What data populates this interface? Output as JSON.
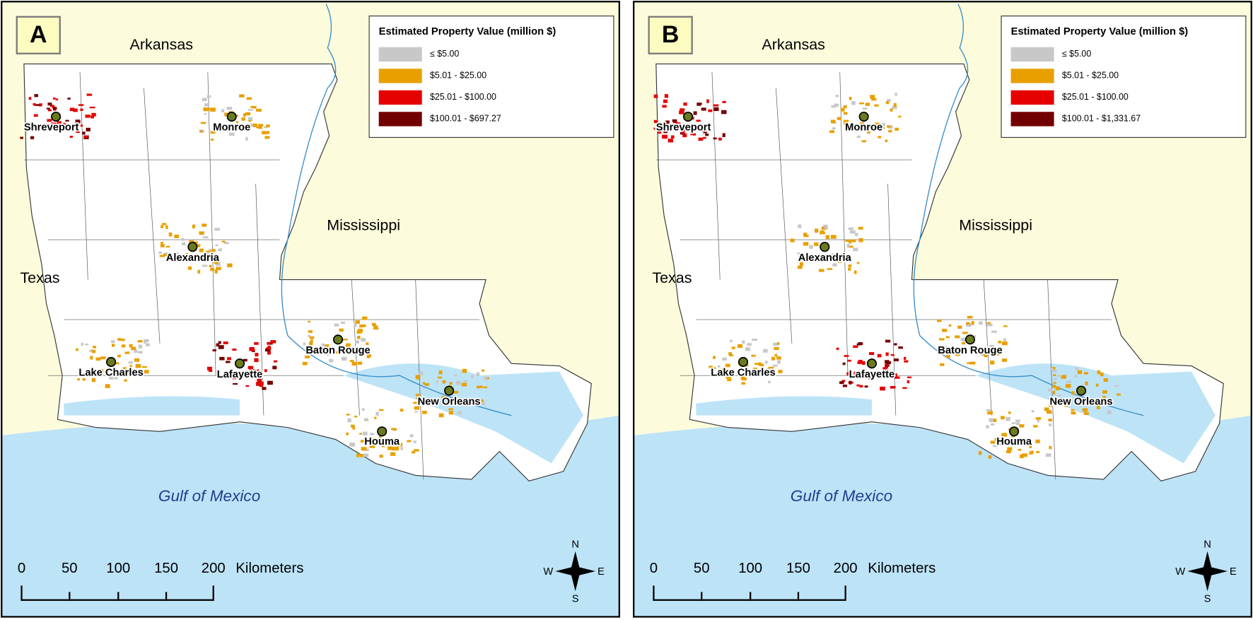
{
  "panels": [
    {
      "label": "A",
      "legend": {
        "title": "Estimated Property Value (million $)",
        "items": [
          {
            "label": "≤ $5.00",
            "color": "#c8c8c8"
          },
          {
            "label": "$5.01 - $25.00",
            "color": "#e8a000"
          },
          {
            "label": "$25.01 - $100.00",
            "color": "#e60000"
          },
          {
            "label": "$100.01 - $697.27",
            "color": "#730000"
          }
        ]
      },
      "states": [
        "Arkansas",
        "Mississippi",
        "Texas"
      ],
      "gulf": "Gulf of Mexico",
      "cities": [
        "Shreveport",
        "Monroe",
        "Alexandria",
        "Lake Charles",
        "Lafayette",
        "Baton Rouge",
        "New Orleans",
        "Houma"
      ],
      "scale": {
        "ticks": [
          0,
          50,
          100,
          150,
          200
        ],
        "unit": "Kilometers"
      },
      "compass": {
        "n": "N",
        "s": "S",
        "e": "E",
        "w": "W"
      }
    },
    {
      "label": "B",
      "legend": {
        "title": "Estimated Property Value (million $)",
        "items": [
          {
            "label": "≤ $5.00",
            "color": "#c8c8c8"
          },
          {
            "label": "$5.01 - $25.00",
            "color": "#e8a000"
          },
          {
            "label": "$25.01 - $100.00",
            "color": "#e60000"
          },
          {
            "label": "$100.01 - $1,331.67",
            "color": "#730000"
          }
        ]
      },
      "states": [
        "Arkansas",
        "Mississippi",
        "Texas"
      ],
      "gulf": "Gulf of Mexico",
      "cities": [
        "Shreveport",
        "Monroe",
        "Alexandria",
        "Lake Charles",
        "Lafayette",
        "Baton Rouge",
        "New Orleans",
        "Houma"
      ],
      "scale": {
        "ticks": [
          0,
          50,
          100,
          150,
          200
        ],
        "unit": "Kilometers"
      },
      "compass": {
        "n": "N",
        "s": "S",
        "e": "E",
        "w": "W"
      }
    }
  ]
}
